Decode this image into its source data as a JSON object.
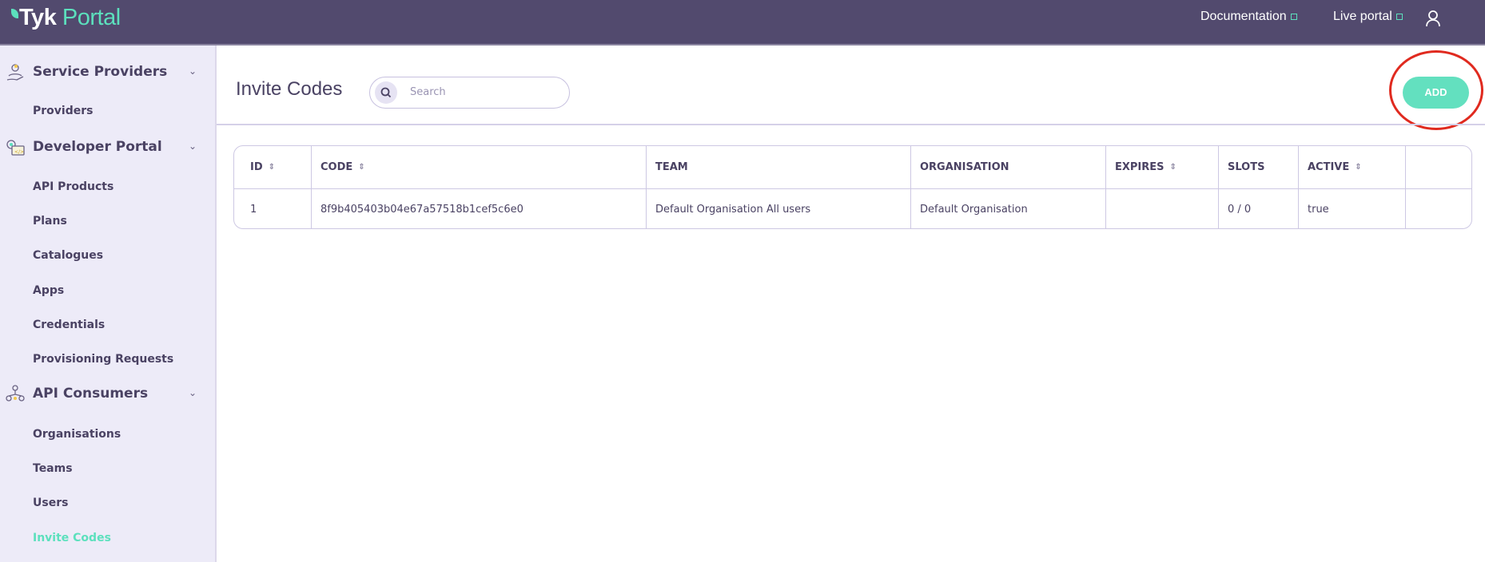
{
  "header": {
    "logo": {
      "tyk": "Tyk",
      "portal": "Portal"
    },
    "links": [
      {
        "label": "Documentation"
      },
      {
        "label": "Live portal"
      }
    ],
    "user_icon": "user-icon"
  },
  "sidebar": {
    "sections": [
      {
        "label": "Service Providers",
        "icon": "hand-user-icon",
        "items": [
          {
            "label": "Providers"
          }
        ]
      },
      {
        "label": "Developer Portal",
        "icon": "gear-code-icon",
        "items": [
          {
            "label": "API Products"
          },
          {
            "label": "Plans"
          },
          {
            "label": "Catalogues"
          },
          {
            "label": "Apps"
          },
          {
            "label": "Credentials"
          },
          {
            "label": "Provisioning Requests"
          }
        ]
      },
      {
        "label": "API Consumers",
        "icon": "users-network-icon",
        "items": [
          {
            "label": "Organisations"
          },
          {
            "label": "Teams"
          },
          {
            "label": "Users"
          },
          {
            "label": "Invite Codes",
            "active": true
          }
        ]
      }
    ]
  },
  "main": {
    "title": "Invite Codes",
    "search": {
      "placeholder": "Search",
      "value": ""
    },
    "add_label": "ADD",
    "table": {
      "columns": [
        {
          "label": "ID",
          "sortable": true
        },
        {
          "label": "CODE",
          "sortable": true
        },
        {
          "label": "TEAM",
          "sortable": false
        },
        {
          "label": "ORGANISATION",
          "sortable": false
        },
        {
          "label": "EXPIRES",
          "sortable": true
        },
        {
          "label": "SLOTS",
          "sortable": false
        },
        {
          "label": "ACTIVE",
          "sortable": true
        },
        {
          "label": "",
          "sortable": false
        }
      ],
      "rows": [
        [
          "1",
          "8f9b405403b04e67a57518b1cef5c6e0",
          "Default Organisation All users",
          "Default Organisation",
          "",
          "0 / 0",
          "true",
          ""
        ]
      ]
    }
  },
  "colors": {
    "header": "#524a6e",
    "accent": "#5ce0bd",
    "sidebar": "#edebf8",
    "annotation": "#e02a1f"
  }
}
